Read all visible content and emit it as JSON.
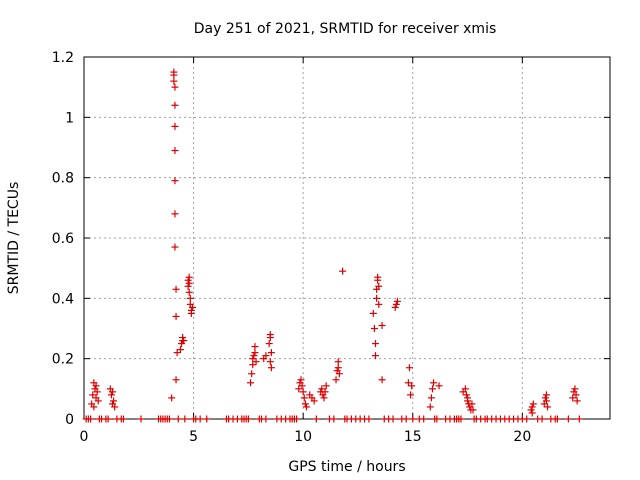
{
  "chart_data": {
    "type": "scatter",
    "title": "Day 251 of 2021, SRMTID for receiver xmis",
    "xlabel": "GPS time / hours",
    "ylabel": "SRMTID / TECUs",
    "xlim": [
      0,
      24
    ],
    "ylim": [
      0,
      1.2
    ],
    "xticks": [
      0,
      5,
      10,
      15,
      20
    ],
    "xtick_labels": [
      "0",
      "5",
      "10",
      "15",
      "20"
    ],
    "yticks": [
      0,
      0.2,
      0.4,
      0.6,
      0.8,
      1.0,
      1.2
    ],
    "ytick_labels": [
      "0",
      "0.2",
      "0.4",
      "0.6",
      "0.8",
      "1",
      "1.2"
    ],
    "grid": true,
    "marker": "+",
    "color": "#e00000",
    "series": [
      {
        "name": "xmis",
        "points": [
          [
            0.35,
            0.05
          ],
          [
            0.4,
            0.08
          ],
          [
            0.45,
            0.12
          ],
          [
            0.5,
            0.1
          ],
          [
            0.55,
            0.07
          ],
          [
            0.6,
            0.09
          ],
          [
            0.65,
            0.06
          ],
          [
            0.45,
            0.04
          ],
          [
            0.55,
            0.11
          ],
          [
            1.2,
            0.1
          ],
          [
            1.25,
            0.08
          ],
          [
            1.3,
            0.05
          ],
          [
            1.35,
            0.06
          ],
          [
            1.4,
            0.04
          ],
          [
            1.3,
            0.09
          ],
          [
            4.0,
            0.07
          ],
          [
            4.1,
            1.15
          ],
          [
            4.1,
            1.14
          ],
          [
            4.1,
            1.12
          ],
          [
            4.15,
            1.1
          ],
          [
            4.15,
            1.04
          ],
          [
            4.15,
            0.97
          ],
          [
            4.15,
            0.89
          ],
          [
            4.15,
            0.79
          ],
          [
            4.15,
            0.68
          ],
          [
            4.15,
            0.57
          ],
          [
            4.2,
            0.43
          ],
          [
            4.2,
            0.34
          ],
          [
            4.2,
            0.13
          ],
          [
            4.25,
            0.22
          ],
          [
            4.4,
            0.23
          ],
          [
            4.45,
            0.25
          ],
          [
            4.5,
            0.26
          ],
          [
            4.5,
            0.27
          ],
          [
            4.55,
            0.26
          ],
          [
            4.75,
            0.46
          ],
          [
            4.75,
            0.44
          ],
          [
            4.8,
            0.45
          ],
          [
            4.8,
            0.42
          ],
          [
            4.85,
            0.4
          ],
          [
            4.85,
            0.38
          ],
          [
            4.9,
            0.36
          ],
          [
            4.9,
            0.35
          ],
          [
            4.95,
            0.37
          ],
          [
            4.8,
            0.47
          ],
          [
            7.6,
            0.12
          ],
          [
            7.65,
            0.15
          ],
          [
            7.7,
            0.18
          ],
          [
            7.7,
            0.2
          ],
          [
            7.75,
            0.21
          ],
          [
            7.8,
            0.22
          ],
          [
            7.8,
            0.24
          ],
          [
            7.85,
            0.19
          ],
          [
            8.2,
            0.2
          ],
          [
            8.3,
            0.21
          ],
          [
            8.45,
            0.25
          ],
          [
            8.5,
            0.27
          ],
          [
            8.5,
            0.28
          ],
          [
            8.55,
            0.22
          ],
          [
            8.55,
            0.17
          ],
          [
            8.5,
            0.19
          ],
          [
            9.8,
            0.1
          ],
          [
            9.85,
            0.12
          ],
          [
            9.9,
            0.13
          ],
          [
            9.95,
            0.11
          ],
          [
            10.0,
            0.09
          ],
          [
            10.05,
            0.07
          ],
          [
            10.1,
            0.05
          ],
          [
            10.15,
            0.04
          ],
          [
            10.3,
            0.08
          ],
          [
            10.4,
            0.07
          ],
          [
            10.5,
            0.06
          ],
          [
            10.8,
            0.09
          ],
          [
            10.85,
            0.1
          ],
          [
            10.9,
            0.08
          ],
          [
            10.95,
            0.07
          ],
          [
            11.0,
            0.09
          ],
          [
            11.05,
            0.11
          ],
          [
            11.5,
            0.13
          ],
          [
            11.55,
            0.16
          ],
          [
            11.6,
            0.17
          ],
          [
            11.6,
            0.19
          ],
          [
            11.65,
            0.15
          ],
          [
            11.8,
            0.49
          ],
          [
            13.2,
            0.35
          ],
          [
            13.25,
            0.3
          ],
          [
            13.3,
            0.25
          ],
          [
            13.3,
            0.21
          ],
          [
            13.35,
            0.4
          ],
          [
            13.35,
            0.43
          ],
          [
            13.4,
            0.46
          ],
          [
            13.4,
            0.47
          ],
          [
            13.45,
            0.44
          ],
          [
            13.45,
            0.38
          ],
          [
            13.6,
            0.31
          ],
          [
            13.6,
            0.13
          ],
          [
            14.2,
            0.37
          ],
          [
            14.25,
            0.38
          ],
          [
            14.3,
            0.39
          ],
          [
            14.8,
            0.12
          ],
          [
            14.85,
            0.17
          ],
          [
            14.9,
            0.08
          ],
          [
            14.95,
            0.11
          ],
          [
            15.8,
            0.04
          ],
          [
            15.85,
            0.07
          ],
          [
            15.9,
            0.1
          ],
          [
            15.95,
            0.12
          ],
          [
            16.2,
            0.11
          ],
          [
            17.3,
            0.09
          ],
          [
            17.4,
            0.1
          ],
          [
            17.45,
            0.08
          ],
          [
            17.5,
            0.07
          ],
          [
            17.55,
            0.05
          ],
          [
            17.6,
            0.04
          ],
          [
            17.65,
            0.03
          ],
          [
            17.7,
            0.05
          ],
          [
            17.75,
            0.03
          ],
          [
            17.5,
            0.06
          ],
          [
            20.4,
            0.03
          ],
          [
            20.45,
            0.04
          ],
          [
            20.5,
            0.05
          ],
          [
            20.45,
            0.02
          ],
          [
            21.0,
            0.05
          ],
          [
            21.05,
            0.07
          ],
          [
            21.1,
            0.06
          ],
          [
            21.15,
            0.04
          ],
          [
            21.1,
            0.08
          ],
          [
            22.3,
            0.07
          ],
          [
            22.35,
            0.09
          ],
          [
            22.4,
            0.1
          ],
          [
            22.45,
            0.08
          ],
          [
            22.5,
            0.06
          ]
        ],
        "zero_x": [
          0.1,
          0.2,
          0.3,
          0.7,
          0.8,
          1.0,
          1.1,
          1.5,
          1.7,
          1.8,
          2.6,
          3.4,
          3.5,
          3.6,
          3.7,
          3.8,
          3.9,
          4.3,
          4.6,
          5.0,
          5.1,
          5.3,
          5.6,
          6.5,
          6.6,
          6.8,
          7.0,
          7.2,
          7.3,
          7.4,
          7.5,
          8.0,
          8.1,
          8.3,
          8.8,
          9.0,
          9.2,
          9.4,
          9.5,
          9.6,
          9.7,
          10.6,
          11.2,
          11.4,
          11.9,
          12.0,
          12.2,
          12.4,
          12.6,
          12.8,
          13.0,
          13.7,
          13.9,
          14.1,
          14.5,
          14.7,
          15.0,
          15.3,
          15.5,
          16.0,
          16.1,
          16.5,
          16.7,
          16.9,
          17.0,
          17.1,
          17.2,
          17.8,
          17.9,
          18.1,
          18.3,
          18.4,
          18.6,
          18.8,
          19.0,
          19.2,
          19.4,
          19.6,
          19.8,
          20.0,
          20.2,
          20.7,
          20.9,
          21.3,
          21.5,
          21.6,
          22.1,
          22.6
        ]
      }
    ]
  }
}
